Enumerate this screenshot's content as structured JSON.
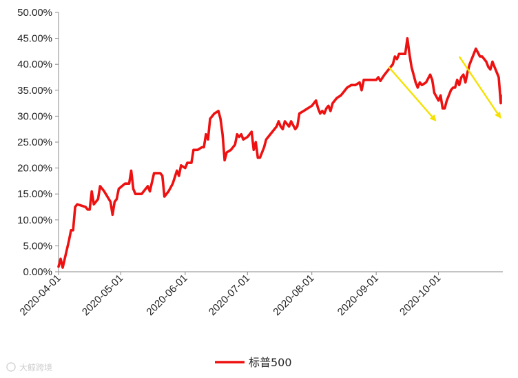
{
  "chart_data": {
    "type": "line",
    "title": "",
    "xlabel": "",
    "ylabel": "",
    "ylim": [
      0,
      50
    ],
    "y_ticks": [
      "0.00%",
      "5.00%",
      "10.00%",
      "15.00%",
      "20.00%",
      "25.00%",
      "30.00%",
      "35.00%",
      "40.00%",
      "45.00%",
      "50.00%"
    ],
    "x_ticks": [
      "2020-04-01",
      "2020-05-01",
      "2020-06-01",
      "2020-07-01",
      "2020-08-01",
      "2020-09-01",
      "2020-10-01"
    ],
    "x_range": [
      "2020-04-01",
      "2020-10-31"
    ],
    "grid": false,
    "legend_position": "bottom",
    "series": [
      {
        "name": "标普500",
        "color": "#ee1111",
        "points": [
          [
            "2020-04-01",
            1.0
          ],
          [
            "2020-04-02",
            2.5
          ],
          [
            "2020-04-03",
            0.8
          ],
          [
            "2020-04-06",
            6.0
          ],
          [
            "2020-04-07",
            8.0
          ],
          [
            "2020-04-08",
            8.0
          ],
          [
            "2020-04-09",
            12.5
          ],
          [
            "2020-04-10",
            13.0
          ],
          [
            "2020-04-14",
            12.5
          ],
          [
            "2020-04-15",
            12.0
          ],
          [
            "2020-04-16",
            12.0
          ],
          [
            "2020-04-17",
            15.5
          ],
          [
            "2020-04-18",
            13.0
          ],
          [
            "2020-04-20",
            14.0
          ],
          [
            "2020-04-21",
            16.5
          ],
          [
            "2020-04-23",
            15.5
          ],
          [
            "2020-04-26",
            13.5
          ],
          [
            "2020-04-27",
            11.0
          ],
          [
            "2020-04-28",
            13.5
          ],
          [
            "2020-04-29",
            14.0
          ],
          [
            "2020-04-30",
            16.0
          ],
          [
            "2020-05-03",
            17.0
          ],
          [
            "2020-05-05",
            17.0
          ],
          [
            "2020-05-06",
            19.5
          ],
          [
            "2020-05-07",
            16.0
          ],
          [
            "2020-05-08",
            15.0
          ],
          [
            "2020-05-11",
            15.0
          ],
          [
            "2020-05-12",
            15.5
          ],
          [
            "2020-05-14",
            16.5
          ],
          [
            "2020-05-15",
            15.5
          ],
          [
            "2020-05-17",
            19.0
          ],
          [
            "2020-05-20",
            19.0
          ],
          [
            "2020-05-21",
            18.5
          ],
          [
            "2020-05-22",
            14.5
          ],
          [
            "2020-05-24",
            15.5
          ],
          [
            "2020-05-26",
            17.0
          ],
          [
            "2020-05-28",
            19.5
          ],
          [
            "2020-05-29",
            18.5
          ],
          [
            "2020-05-30",
            20.5
          ],
          [
            "2020-06-01",
            20.0
          ],
          [
            "2020-06-02",
            21.0
          ],
          [
            "2020-06-03",
            21.0
          ],
          [
            "2020-06-04",
            21.0
          ],
          [
            "2020-06-05",
            23.5
          ],
          [
            "2020-06-07",
            23.5
          ],
          [
            "2020-06-09",
            24.0
          ],
          [
            "2020-06-10",
            24.0
          ],
          [
            "2020-06-11",
            26.5
          ],
          [
            "2020-06-12",
            25.5
          ],
          [
            "2020-06-13",
            29.5
          ],
          [
            "2020-06-15",
            30.5
          ],
          [
            "2020-06-17",
            31.0
          ],
          [
            "2020-06-18",
            29.5
          ],
          [
            "2020-06-19",
            26.5
          ],
          [
            "2020-06-20",
            21.5
          ],
          [
            "2020-06-21",
            23.0
          ],
          [
            "2020-06-23",
            23.5
          ],
          [
            "2020-06-25",
            24.5
          ],
          [
            "2020-06-26",
            26.5
          ],
          [
            "2020-06-27",
            26.0
          ],
          [
            "2020-06-28",
            26.5
          ],
          [
            "2020-06-29",
            25.5
          ],
          [
            "2020-07-01",
            26.0
          ],
          [
            "2020-07-03",
            27.0
          ],
          [
            "2020-07-04",
            23.5
          ],
          [
            "2020-07-05",
            25.0
          ],
          [
            "2020-07-06",
            22.0
          ],
          [
            "2020-07-07",
            22.0
          ],
          [
            "2020-07-08",
            23.0
          ],
          [
            "2020-07-09",
            24.0
          ],
          [
            "2020-07-10",
            25.5
          ],
          [
            "2020-07-11",
            26.0
          ],
          [
            "2020-07-15",
            28.0
          ],
          [
            "2020-07-16",
            29.0
          ],
          [
            "2020-07-17",
            28.0
          ],
          [
            "2020-07-18",
            27.5
          ],
          [
            "2020-07-19",
            29.0
          ],
          [
            "2020-07-21",
            28.0
          ],
          [
            "2020-07-22",
            29.0
          ],
          [
            "2020-07-24",
            27.5
          ],
          [
            "2020-07-25",
            28.0
          ],
          [
            "2020-07-26",
            30.5
          ],
          [
            "2020-07-28",
            31.0
          ],
          [
            "2020-07-30",
            31.5
          ],
          [
            "2020-08-01",
            32.0
          ],
          [
            "2020-08-03",
            33.0
          ],
          [
            "2020-08-04",
            31.5
          ],
          [
            "2020-08-05",
            30.5
          ],
          [
            "2020-08-06",
            31.0
          ],
          [
            "2020-08-07",
            30.5
          ],
          [
            "2020-08-08",
            31.5
          ],
          [
            "2020-08-09",
            32.0
          ],
          [
            "2020-08-10",
            31.0
          ],
          [
            "2020-08-11",
            32.5
          ],
          [
            "2020-08-13",
            33.5
          ],
          [
            "2020-08-15",
            34.0
          ],
          [
            "2020-08-16",
            34.5
          ],
          [
            "2020-08-18",
            35.5
          ],
          [
            "2020-08-20",
            36.0
          ],
          [
            "2020-08-22",
            36.0
          ],
          [
            "2020-08-24",
            36.5
          ],
          [
            "2020-08-25",
            35.0
          ],
          [
            "2020-08-26",
            37.0
          ],
          [
            "2020-08-27",
            37.0
          ],
          [
            "2020-08-28",
            37.0
          ],
          [
            "2020-08-30",
            37.0
          ],
          [
            "2020-09-01",
            37.0
          ],
          [
            "2020-09-02",
            37.5
          ],
          [
            "2020-09-03",
            36.8
          ],
          [
            "2020-09-05",
            38.0
          ],
          [
            "2020-09-06",
            38.5
          ],
          [
            "2020-09-08",
            39.5
          ],
          [
            "2020-09-09",
            40.0
          ],
          [
            "2020-09-10",
            41.5
          ],
          [
            "2020-09-11",
            41.0
          ],
          [
            "2020-09-12",
            42.0
          ],
          [
            "2020-09-14",
            42.0
          ],
          [
            "2020-09-15",
            42.0
          ],
          [
            "2020-09-16",
            45.0
          ],
          [
            "2020-09-17",
            42.0
          ],
          [
            "2020-09-18",
            39.5
          ],
          [
            "2020-09-19",
            38.0
          ],
          [
            "2020-09-20",
            36.5
          ],
          [
            "2020-09-21",
            35.5
          ],
          [
            "2020-09-22",
            36.5
          ],
          [
            "2020-09-23",
            36.0
          ],
          [
            "2020-09-25",
            36.5
          ],
          [
            "2020-09-27",
            38.0
          ],
          [
            "2020-09-28",
            37.0
          ],
          [
            "2020-09-29",
            34.5
          ],
          [
            "2020-10-01",
            33.0
          ],
          [
            "2020-10-02",
            34.0
          ],
          [
            "2020-10-03",
            31.5
          ],
          [
            "2020-10-04",
            31.5
          ],
          [
            "2020-10-05",
            33.0
          ],
          [
            "2020-10-06",
            34.0
          ],
          [
            "2020-10-07",
            35.0
          ],
          [
            "2020-10-08",
            35.5
          ],
          [
            "2020-10-09",
            35.5
          ],
          [
            "2020-10-10",
            37.0
          ],
          [
            "2020-10-11",
            36.0
          ],
          [
            "2020-10-12",
            37.5
          ],
          [
            "2020-10-13",
            38.0
          ],
          [
            "2020-10-14",
            36.5
          ],
          [
            "2020-10-15",
            38.5
          ],
          [
            "2020-10-16",
            40.0
          ],
          [
            "2020-10-17",
            41.0
          ],
          [
            "2020-10-18",
            42.0
          ],
          [
            "2020-10-19",
            43.0
          ],
          [
            "2020-10-21",
            41.5
          ],
          [
            "2020-10-22",
            41.5
          ],
          [
            "2020-10-24",
            40.5
          ],
          [
            "2020-10-25",
            39.5
          ],
          [
            "2020-10-26",
            39.0
          ],
          [
            "2020-10-27",
            40.5
          ],
          [
            "2020-10-28",
            39.5
          ],
          [
            "2020-10-29",
            38.5
          ],
          [
            "2020-10-30",
            37.5
          ],
          [
            "2020-10-31",
            32.5
          ],
          [
            "2020-10-31",
            34.0
          ]
        ]
      }
    ],
    "annotations": [
      {
        "type": "arrow",
        "color": "#f5e100",
        "from": [
          "2020-09-07",
          39.5
        ],
        "to": [
          "2020-10-01",
          28.5
        ]
      },
      {
        "type": "arrow",
        "color": "#f5e100",
        "from": [
          "2020-10-11",
          41.5
        ],
        "to": [
          "2020-11-01",
          29.0
        ]
      }
    ]
  },
  "watermark": {
    "text": "大鲸跨境"
  }
}
